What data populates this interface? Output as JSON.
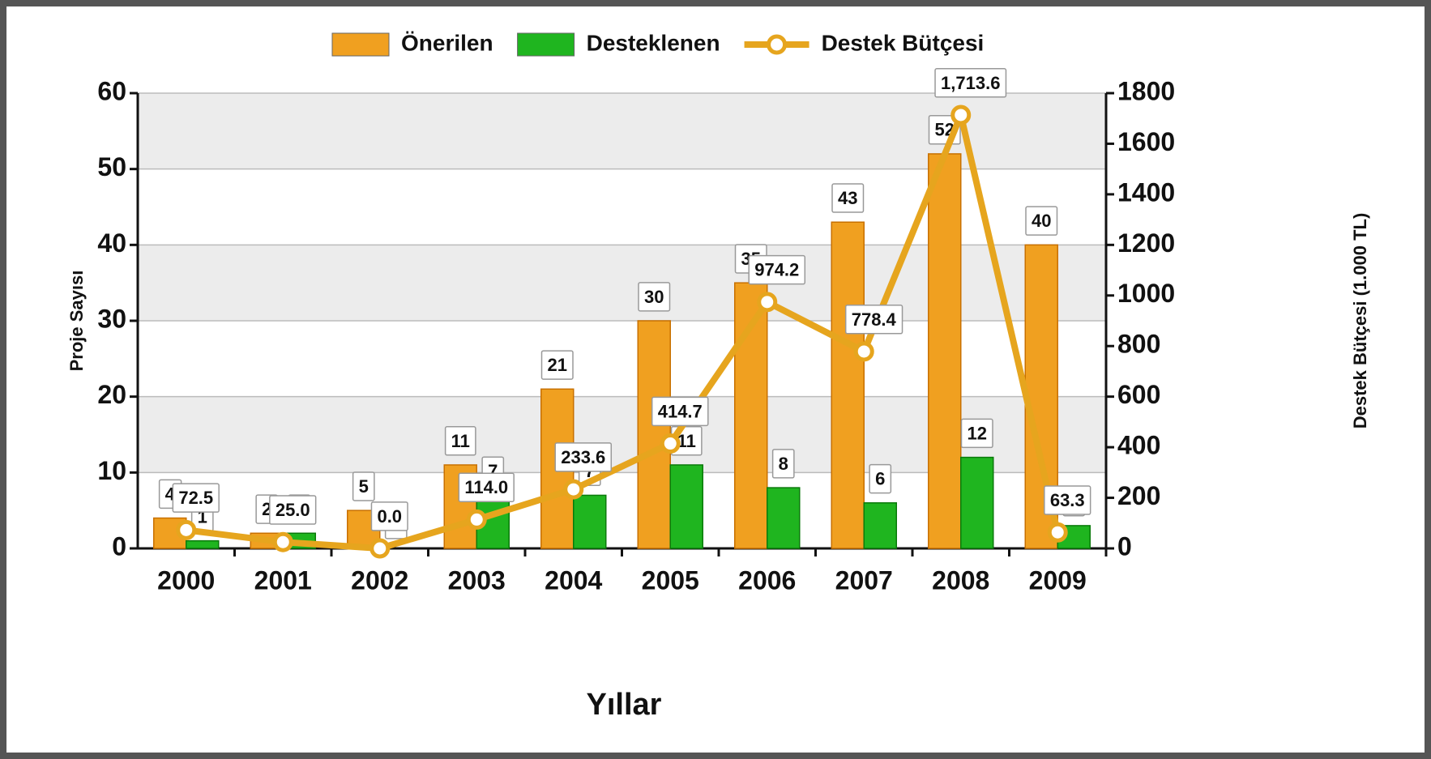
{
  "chart_data": {
    "type": "bar",
    "legend": "top",
    "xlabel": "Yıllar",
    "ylabel": "Proje Sayısı",
    "y2label": "Destek Bütçesi (1.000 TL)",
    "categories": [
      "2000",
      "2001",
      "2002",
      "2003",
      "2004",
      "2005",
      "2006",
      "2007",
      "2008",
      "2009"
    ],
    "series": [
      {
        "name": "Önerilen",
        "color": "#f0a020",
        "values": [
          4,
          2,
          5,
          11,
          21,
          30,
          35,
          43,
          52,
          40
        ]
      },
      {
        "name": "Desteklenen",
        "color": "#1fb51f",
        "values": [
          1,
          2,
          0,
          7,
          7,
          11,
          8,
          6,
          12,
          3
        ]
      },
      {
        "name": "Destek Bütçesi",
        "color": "#e6a51e",
        "type": "line",
        "axis": "y2",
        "values": [
          72.5,
          25.0,
          0.0,
          114.0,
          233.6,
          414.7,
          974.2,
          778.4,
          1713.6,
          63.3
        ],
        "value_labels": [
          "72.5",
          "25.0",
          "0.0",
          "114.0",
          "233.6",
          "414.7",
          "974.2",
          "778.4",
          "1,713.6",
          "63.3"
        ]
      }
    ],
    "ylim": [
      0,
      60
    ],
    "yticks": [
      0,
      10,
      20,
      30,
      40,
      50,
      60
    ],
    "y2lim": [
      0,
      1800
    ],
    "y2ticks": [
      0,
      200,
      400,
      600,
      800,
      1000,
      1200,
      1400,
      1600,
      1800
    ],
    "grid": true
  }
}
